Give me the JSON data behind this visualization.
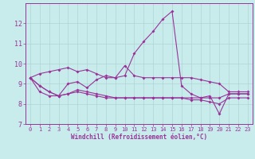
{
  "title": "",
  "xlabel": "Windchill (Refroidissement éolien,°C)",
  "ylabel": "",
  "background_color": "#c8ecec",
  "line_color": "#993399",
  "grid_color": "#aaccaa",
  "xlim": [
    -0.5,
    23.5
  ],
  "ylim": [
    7,
    13
  ],
  "yticks": [
    7,
    8,
    9,
    10,
    11,
    12
  ],
  "xticks": [
    0,
    1,
    2,
    3,
    4,
    5,
    6,
    7,
    8,
    9,
    10,
    11,
    12,
    13,
    14,
    15,
    16,
    17,
    18,
    19,
    20,
    21,
    22,
    23
  ],
  "line1_x": [
    0,
    1,
    2,
    3,
    4,
    5,
    6,
    7,
    8,
    9,
    10,
    11,
    12,
    13,
    14,
    15,
    16,
    17,
    18,
    19,
    20,
    21,
    22,
    23
  ],
  "line1_y": [
    9.3,
    9.5,
    9.6,
    9.7,
    9.8,
    9.6,
    9.7,
    9.5,
    9.3,
    9.3,
    9.9,
    9.4,
    9.3,
    9.3,
    9.3,
    9.3,
    9.3,
    9.3,
    9.2,
    9.1,
    9.0,
    8.6,
    8.6,
    8.6
  ],
  "line2_x": [
    0,
    1,
    2,
    3,
    4,
    5,
    6,
    7,
    8,
    9,
    10,
    11,
    12,
    13,
    14,
    15,
    16,
    17,
    18,
    19,
    20,
    21,
    22,
    23
  ],
  "line2_y": [
    9.3,
    8.9,
    8.6,
    8.4,
    9.0,
    9.1,
    8.8,
    9.2,
    9.4,
    9.3,
    9.4,
    10.5,
    11.1,
    11.6,
    12.2,
    12.6,
    8.9,
    8.5,
    8.3,
    8.4,
    7.5,
    8.5,
    8.5,
    8.5
  ],
  "line3_x": [
    0,
    1,
    2,
    3,
    4,
    5,
    6,
    7,
    8,
    9,
    10,
    11,
    12,
    13,
    14,
    15,
    16,
    17,
    18,
    19,
    20,
    21,
    22,
    23
  ],
  "line3_y": [
    9.3,
    8.6,
    8.4,
    8.4,
    8.5,
    8.6,
    8.5,
    8.4,
    8.3,
    8.3,
    8.3,
    8.3,
    8.3,
    8.3,
    8.3,
    8.3,
    8.3,
    8.3,
    8.3,
    8.3,
    8.3,
    8.5,
    8.5,
    8.5
  ],
  "line4_x": [
    0,
    1,
    2,
    3,
    4,
    5,
    6,
    7,
    8,
    9,
    10,
    11,
    12,
    13,
    14,
    15,
    16,
    17,
    18,
    19,
    20,
    21,
    22,
    23
  ],
  "line4_y": [
    9.3,
    8.9,
    8.6,
    8.4,
    8.5,
    8.7,
    8.6,
    8.5,
    8.4,
    8.3,
    8.3,
    8.3,
    8.3,
    8.3,
    8.3,
    8.3,
    8.3,
    8.2,
    8.2,
    8.1,
    8.0,
    8.3,
    8.3,
    8.3
  ]
}
